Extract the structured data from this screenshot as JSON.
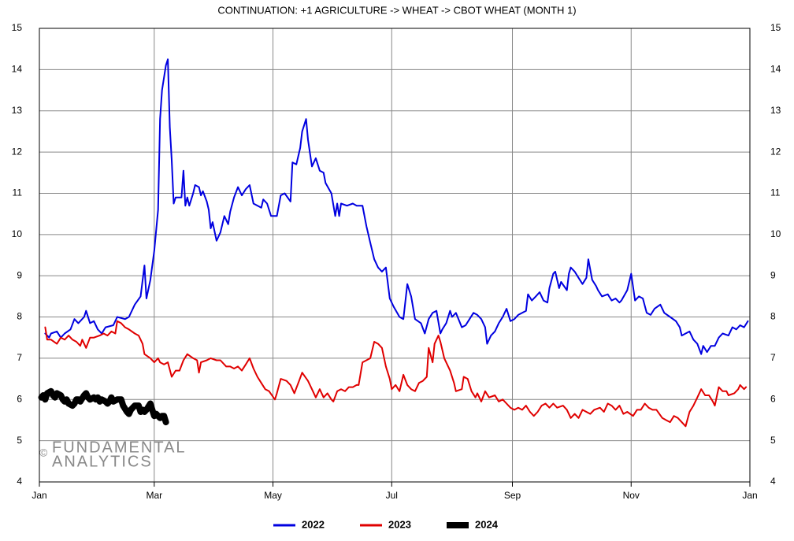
{
  "chart_data": {
    "type": "line",
    "title": "CONTINUATION: +1 AGRICULTURE -> WHEAT -> CBOT WHEAT (MONTH 1)",
    "watermark": {
      "symbol": "©",
      "lines": [
        "FUNDAMENTAL",
        "ANALYTICS"
      ]
    },
    "xlim": [
      0,
      365
    ],
    "xticks": [
      {
        "value": 0,
        "label": "Jan"
      },
      {
        "value": 59,
        "label": "Mar"
      },
      {
        "value": 120,
        "label": "May"
      },
      {
        "value": 181,
        "label": "Jul"
      },
      {
        "value": 243,
        "label": "Sep"
      },
      {
        "value": 304,
        "label": "Nov"
      },
      {
        "value": 365,
        "label": "Jan"
      }
    ],
    "ylim": [
      4,
      15
    ],
    "yticks": [
      4,
      5,
      6,
      7,
      8,
      9,
      10,
      11,
      12,
      13,
      14,
      15
    ],
    "grid": true,
    "legend": "bottom",
    "series": [
      {
        "name": "2022",
        "color": "#0000e0",
        "width": 2,
        "x": [
          3,
          5,
          6,
          9,
          11,
          13,
          16,
          18,
          20,
          23,
          24,
          26,
          28,
          30,
          32,
          34,
          38,
          40,
          44,
          46,
          49,
          52,
          54,
          55,
          57,
          59,
          61,
          62,
          63,
          65,
          66,
          67,
          68,
          69,
          70,
          73,
          74,
          75,
          76,
          77,
          79,
          80,
          82,
          83,
          84,
          86,
          87,
          88,
          89,
          91,
          93,
          95,
          97,
          98,
          100,
          102,
          104,
          106,
          108,
          110,
          114,
          115,
          117,
          119,
          122,
          124,
          126,
          129,
          130,
          132,
          134,
          135,
          137,
          138,
          140,
          142,
          144,
          146,
          147,
          150,
          152,
          153,
          154,
          155,
          158,
          161,
          163,
          166,
          168,
          170,
          172,
          174,
          176,
          178,
          180,
          182,
          185,
          187,
          189,
          191,
          193,
          196,
          198,
          200,
          202,
          204,
          206,
          207,
          209,
          211,
          212,
          214,
          217,
          219,
          221,
          223,
          225,
          227,
          229,
          230,
          232,
          234,
          236,
          238,
          240,
          242,
          244,
          246,
          248,
          250,
          251,
          253,
          255,
          257,
          259,
          261,
          262,
          264,
          265,
          267,
          268,
          271,
          272,
          273,
          275,
          277,
          279,
          281,
          282,
          284,
          286,
          287,
          289,
          292,
          294,
          296,
          298,
          299,
          302,
          304,
          306,
          308,
          310,
          312,
          314,
          316,
          319,
          321,
          324,
          327,
          329,
          330,
          332,
          334,
          336,
          338,
          340,
          341,
          343,
          345,
          347,
          349,
          351,
          354,
          356,
          358,
          360,
          362,
          364
        ],
        "values": [
          7.6,
          7.5,
          7.6,
          7.65,
          7.5,
          7.6,
          7.7,
          7.95,
          7.85,
          8.0,
          8.15,
          7.85,
          7.9,
          7.7,
          7.6,
          7.75,
          7.8,
          8.0,
          7.95,
          8.0,
          8.3,
          8.5,
          9.25,
          8.45,
          8.9,
          9.6,
          10.6,
          12.8,
          13.5,
          14.1,
          14.25,
          12.6,
          11.8,
          10.75,
          10.9,
          10.9,
          11.55,
          10.7,
          10.9,
          10.7,
          11.0,
          11.2,
          11.15,
          10.95,
          11.05,
          10.8,
          10.6,
          10.15,
          10.3,
          9.85,
          10.05,
          10.45,
          10.25,
          10.55,
          10.9,
          11.15,
          10.95,
          11.1,
          11.2,
          10.75,
          10.65,
          10.85,
          10.75,
          10.45,
          10.45,
          10.95,
          11.0,
          10.8,
          11.75,
          11.7,
          12.1,
          12.5,
          12.8,
          12.3,
          11.65,
          11.85,
          11.55,
          11.5,
          11.25,
          11.0,
          10.45,
          10.75,
          10.45,
          10.75,
          10.7,
          10.75,
          10.7,
          10.7,
          10.2,
          9.8,
          9.4,
          9.2,
          9.1,
          9.2,
          8.45,
          8.25,
          8.0,
          7.95,
          8.8,
          8.5,
          7.95,
          7.85,
          7.6,
          7.95,
          8.1,
          8.15,
          7.6,
          7.7,
          7.85,
          8.15,
          8.0,
          8.1,
          7.75,
          7.8,
          7.95,
          8.1,
          8.05,
          7.95,
          7.75,
          7.35,
          7.55,
          7.65,
          7.85,
          8.0,
          8.2,
          7.9,
          7.95,
          8.05,
          8.1,
          8.15,
          8.55,
          8.4,
          8.5,
          8.6,
          8.4,
          8.35,
          8.7,
          9.05,
          9.1,
          8.7,
          8.85,
          8.65,
          9.05,
          9.2,
          9.1,
          8.95,
          8.8,
          8.95,
          9.4,
          8.9,
          8.75,
          8.65,
          8.5,
          8.55,
          8.4,
          8.45,
          8.35,
          8.4,
          8.65,
          9.05,
          8.4,
          8.5,
          8.45,
          8.1,
          8.05,
          8.2,
          8.3,
          8.1,
          8.0,
          7.9,
          7.75,
          7.55,
          7.6,
          7.65,
          7.45,
          7.35,
          7.1,
          7.3,
          7.15,
          7.3,
          7.3,
          7.5,
          7.6,
          7.55,
          7.75,
          7.7,
          7.8,
          7.75,
          7.9
        ]
      },
      {
        "name": "2023",
        "color": "#e00000",
        "width": 2,
        "x": [
          3,
          4,
          6,
          9,
          11,
          13,
          15,
          17,
          19,
          21,
          22,
          24,
          26,
          28,
          31,
          33,
          35,
          37,
          39,
          40,
          42,
          44,
          46,
          49,
          51,
          53,
          54,
          57,
          59,
          61,
          62,
          64,
          66,
          68,
          70,
          72,
          74,
          76,
          79,
          81,
          82,
          83,
          86,
          88,
          91,
          93,
          96,
          98,
          100,
          102,
          104,
          106,
          108,
          110,
          112,
          114,
          116,
          118,
          121,
          122,
          124,
          127,
          129,
          131,
          133,
          135,
          138,
          140,
          142,
          144,
          146,
          148,
          150,
          151,
          153,
          155,
          157,
          159,
          161,
          163,
          164,
          166,
          168,
          170,
          172,
          174,
          176,
          178,
          180,
          181,
          183,
          185,
          187,
          189,
          191,
          193,
          195,
          197,
          199,
          200,
          202,
          203,
          205,
          206,
          208,
          211,
          213,
          214,
          217,
          218,
          220,
          222,
          224,
          225,
          227,
          229,
          231,
          234,
          236,
          238,
          240,
          242,
          244,
          246,
          248,
          250,
          252,
          254,
          256,
          258,
          260,
          262,
          264,
          266,
          269,
          271,
          273,
          275,
          277,
          279,
          281,
          283,
          285,
          288,
          290,
          292,
          294,
          296,
          298,
          300,
          302,
          305,
          307,
          309,
          311,
          313,
          315,
          317,
          320,
          322,
          324,
          326,
          328,
          330,
          332,
          334,
          336,
          338,
          340,
          342,
          344,
          346,
          347,
          349,
          351,
          353,
          354,
          357,
          359,
          360,
          362,
          363
        ],
        "values": [
          7.75,
          7.45,
          7.45,
          7.35,
          7.5,
          7.45,
          7.55,
          7.45,
          7.4,
          7.3,
          7.45,
          7.25,
          7.5,
          7.5,
          7.55,
          7.6,
          7.55,
          7.65,
          7.6,
          7.9,
          7.85,
          7.75,
          7.7,
          7.6,
          7.55,
          7.35,
          7.1,
          7.0,
          6.9,
          7.0,
          6.9,
          6.85,
          6.9,
          6.55,
          6.7,
          6.7,
          6.95,
          7.1,
          7.0,
          6.95,
          6.65,
          6.9,
          6.95,
          7.0,
          6.95,
          6.95,
          6.8,
          6.8,
          6.75,
          6.8,
          6.7,
          6.85,
          7.0,
          6.75,
          6.55,
          6.4,
          6.25,
          6.2,
          6.0,
          6.15,
          6.5,
          6.45,
          6.35,
          6.15,
          6.4,
          6.65,
          6.45,
          6.25,
          6.05,
          6.25,
          6.05,
          6.15,
          6.0,
          5.95,
          6.2,
          6.25,
          6.2,
          6.3,
          6.3,
          6.35,
          6.35,
          6.9,
          6.95,
          7.0,
          7.4,
          7.35,
          7.25,
          6.8,
          6.5,
          6.25,
          6.35,
          6.2,
          6.6,
          6.35,
          6.25,
          6.2,
          6.4,
          6.45,
          6.55,
          7.25,
          6.9,
          7.35,
          7.55,
          7.4,
          7.0,
          6.7,
          6.4,
          6.2,
          6.25,
          6.55,
          6.5,
          6.2,
          6.05,
          6.15,
          5.95,
          6.2,
          6.05,
          6.1,
          5.95,
          6.0,
          5.9,
          5.8,
          5.75,
          5.8,
          5.75,
          5.85,
          5.7,
          5.6,
          5.7,
          5.85,
          5.9,
          5.8,
          5.9,
          5.8,
          5.85,
          5.75,
          5.55,
          5.65,
          5.55,
          5.75,
          5.7,
          5.65,
          5.75,
          5.8,
          5.7,
          5.9,
          5.85,
          5.75,
          5.85,
          5.65,
          5.7,
          5.6,
          5.75,
          5.75,
          5.9,
          5.8,
          5.75,
          5.75,
          5.55,
          5.5,
          5.45,
          5.6,
          5.55,
          5.45,
          5.35,
          5.7,
          5.85,
          6.05,
          6.25,
          6.1,
          6.1,
          5.95,
          5.85,
          6.3,
          6.2,
          6.2,
          6.1,
          6.15,
          6.25,
          6.35,
          6.25,
          6.3
        ]
      },
      {
        "name": "2024",
        "color": "#000000",
        "width": 8,
        "x": [
          1,
          2,
          3,
          4,
          6,
          7,
          8,
          9,
          11,
          12,
          13,
          14,
          15,
          17,
          18,
          19,
          20,
          21,
          23,
          24,
          25,
          26,
          28,
          29,
          30,
          31,
          32,
          34,
          35,
          36,
          37,
          38,
          40,
          41,
          42,
          43,
          45,
          46,
          47,
          48,
          49,
          51,
          52,
          53,
          54,
          55,
          57,
          58,
          59,
          60,
          62,
          63,
          64,
          65
        ],
        "values": [
          6.05,
          6.1,
          6.0,
          6.15,
          6.2,
          6.1,
          6.05,
          6.15,
          6.1,
          6.0,
          5.95,
          6.0,
          5.9,
          5.85,
          5.9,
          6.0,
          6.0,
          5.95,
          6.1,
          6.15,
          6.05,
          6.0,
          6.05,
          6.0,
          6.05,
          5.95,
          6.0,
          5.95,
          5.9,
          5.95,
          6.05,
          5.95,
          6.0,
          6.0,
          6.0,
          5.85,
          5.7,
          5.65,
          5.75,
          5.8,
          5.85,
          5.85,
          5.7,
          5.75,
          5.7,
          5.75,
          5.9,
          5.75,
          5.6,
          5.65,
          5.55,
          5.6,
          5.6,
          5.45
        ]
      }
    ]
  }
}
